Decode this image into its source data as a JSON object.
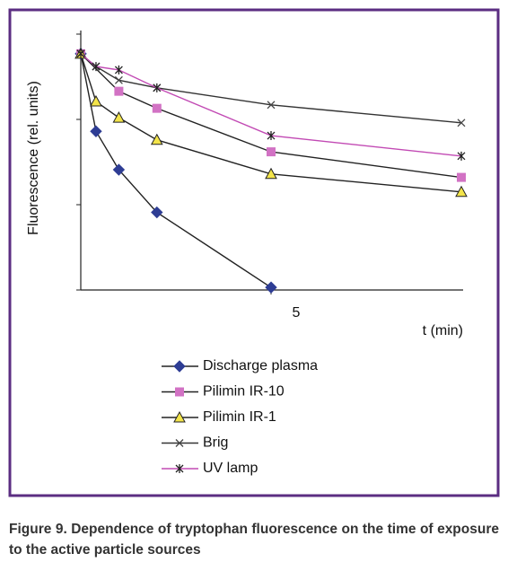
{
  "chart_data": {
    "type": "line",
    "ylabel": "Fluorescence (rel. units)",
    "xlabel": "t (min)",
    "caption": "Figure 9. Dependence of tryptophan fluorescence on the time of exposure to the active particle sources",
    "xlim": [
      0,
      10
    ],
    "xticks": [
      5
    ],
    "ylim": [
      0,
      3
    ],
    "yticks": [
      0,
      1,
      2,
      3
    ],
    "show_ytick_labels": false,
    "series": [
      {
        "name": "Discharge plasma",
        "color": "#2e3d94",
        "line_color": "#222",
        "marker": "diamond",
        "x": [
          0,
          0.4,
          1,
          2,
          5
        ],
        "values": [
          2.77,
          1.86,
          1.41,
          0.91,
          0.03
        ]
      },
      {
        "name": "Pilimin IR-10",
        "color": "#d272c4",
        "line_color": "#222",
        "marker": "square",
        "x": [
          0,
          1,
          2,
          5,
          10
        ],
        "values": [
          2.77,
          2.33,
          2.13,
          1.62,
          1.32
        ]
      },
      {
        "name": "Pilimin IR-1",
        "color": "#f3e44a",
        "line_color": "#222",
        "marker": "triangle",
        "x": [
          0,
          0.4,
          1,
          2,
          5,
          10
        ],
        "values": [
          2.77,
          2.21,
          2.02,
          1.76,
          1.36,
          1.15
        ]
      },
      {
        "name": "Brig",
        "color": "#444",
        "line_color": "#333",
        "marker": "x",
        "x": [
          0,
          0.4,
          1,
          2,
          5,
          10
        ],
        "values": [
          2.77,
          2.62,
          2.46,
          2.37,
          2.17,
          1.96
        ]
      },
      {
        "name": "UV lamp",
        "color": "#222",
        "line_color": "#c24ab4",
        "marker": "asterisk",
        "x": [
          0,
          0.4,
          1,
          2,
          5,
          10
        ],
        "values": [
          2.77,
          2.62,
          2.58,
          2.37,
          1.81,
          1.57
        ]
      }
    ]
  }
}
